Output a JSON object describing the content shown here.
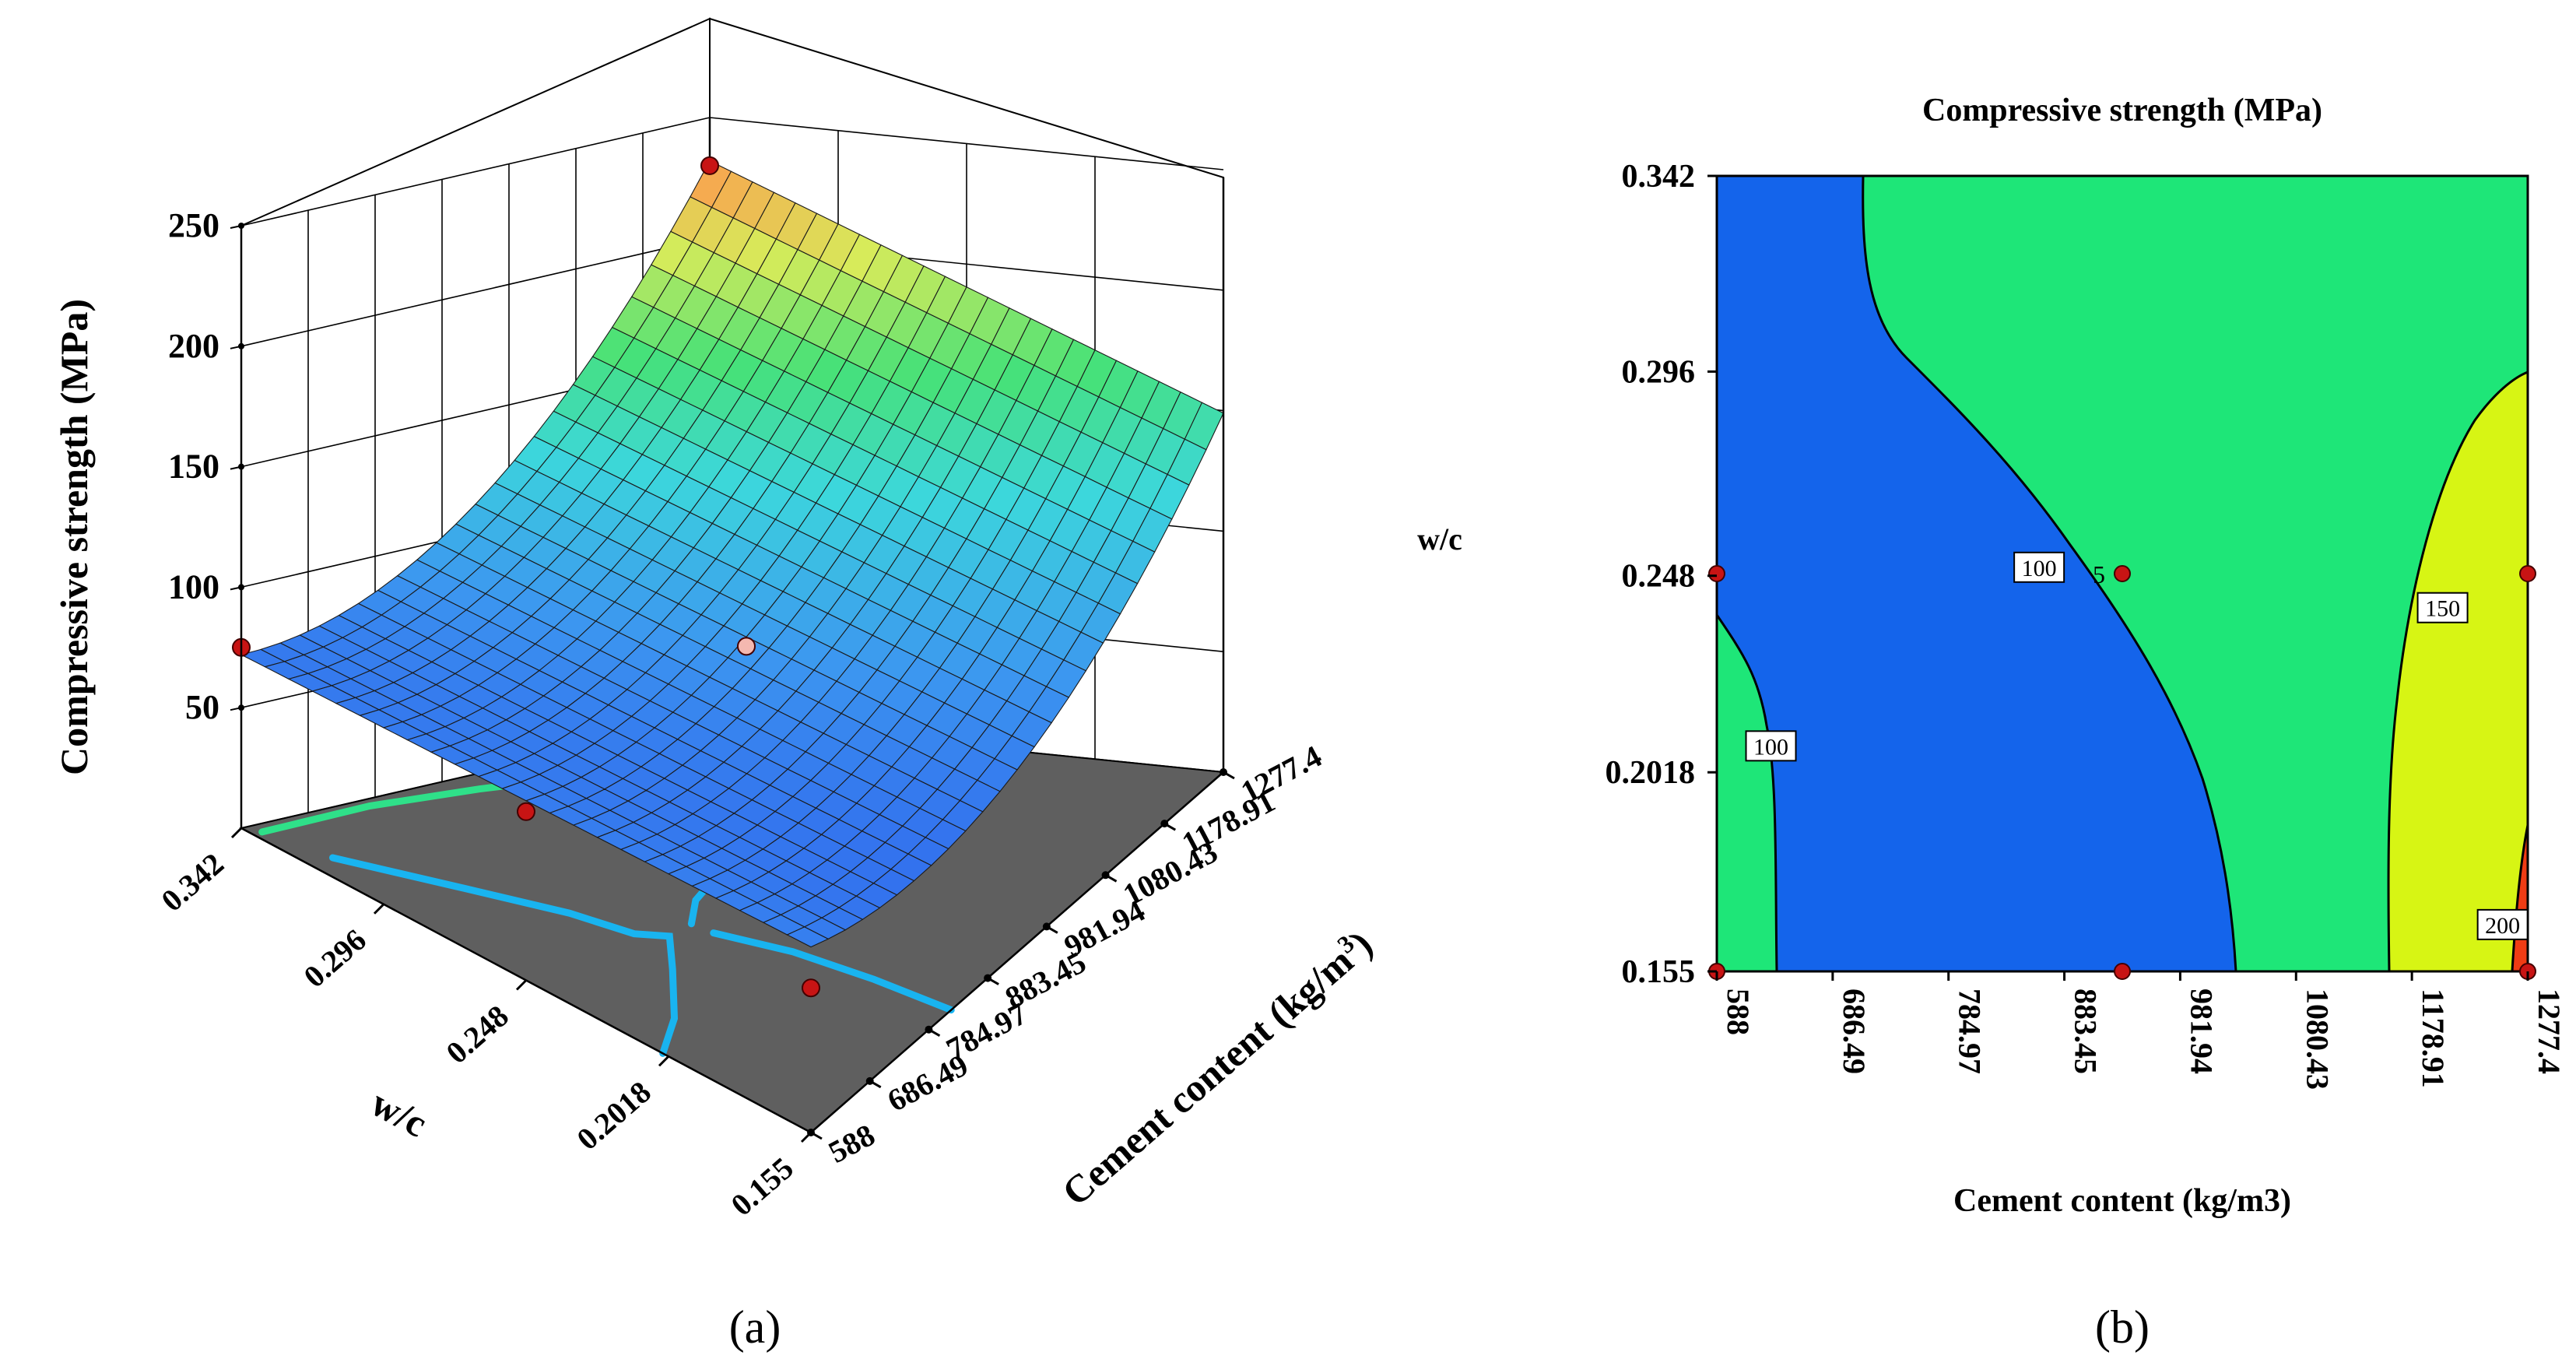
{
  "panel_a": {
    "caption": "(a)",
    "chart_data": {
      "type": "surface3d",
      "title": "",
      "zlabel": "Compressive strength (MPa)",
      "xlabel": "Cement content (kg/m3)",
      "xlabel_main": "Cement content (kg/m",
      "xlabel_sup": "3",
      "xlabel_end": ")",
      "ylabel": "w/c",
      "x_ticks": [
        "588",
        "686.49",
        "784.97",
        "883.45",
        "981.94",
        "1080.43",
        "1178.91",
        "1277.4"
      ],
      "y_ticks": [
        "0.342",
        "0.296",
        "0.248",
        "0.2018",
        "0.155"
      ],
      "z_ticks": [
        "50",
        "100",
        "150",
        "200",
        "250"
      ],
      "xlim": [
        588,
        1277.4
      ],
      "ylim": [
        0.155,
        0.342
      ],
      "zlim": [
        0,
        250
      ],
      "design_points": [
        {
          "cement": 588,
          "wc": 0.342,
          "strength": 75
        },
        {
          "cement": 588,
          "wc": 0.155,
          "strength": 60
        },
        {
          "cement": 1277.4,
          "wc": 0.342,
          "strength": 230
        },
        {
          "cement": 932.7,
          "wc": 0.2485,
          "strength": 90
        },
        {
          "cement": 588,
          "wc": 0.2485,
          "strength": 70
        }
      ],
      "floor_contours": [
        {
          "level": 100,
          "color": "#19b4f0"
        },
        {
          "level": 150,
          "color": "#2fe089"
        },
        {
          "level": 200,
          "color": "#c8f03c"
        },
        {
          "level": 250,
          "color": "#f09b1e"
        }
      ]
    }
  },
  "panel_b": {
    "caption": "(b)",
    "chart_data": {
      "type": "contour",
      "title": "Compressive strength (MPa)",
      "xlabel": "Cement content (kg/m3)",
      "ylabel": "w/c",
      "x_ticks": [
        "588",
        "686.49",
        "784.97",
        "883.45",
        "981.94",
        "1080.43",
        "1178.91",
        "1277.4"
      ],
      "y_ticks": [
        "0.342",
        "0.296",
        "0.248",
        "0.2018",
        "0.155"
      ],
      "xlim": [
        588,
        1277.4
      ],
      "ylim": [
        0.155,
        0.342
      ],
      "regions": [
        {
          "range": "< 100",
          "color": "#1464eb"
        },
        {
          "range": "100-150",
          "color": "#1ee678"
        },
        {
          "range": "150-200",
          "color": "#d7f514"
        },
        {
          "range": "> 200",
          "color": "#f03c14"
        }
      ],
      "contour_labels": [
        {
          "text": "100",
          "cement": 634,
          "wc": 0.208
        },
        {
          "text": "100",
          "cement": 862,
          "wc": 0.25
        },
        {
          "text": "150",
          "cement": 1205,
          "wc": 0.2405
        },
        {
          "text": "200",
          "cement": 1256,
          "wc": 0.166
        }
      ],
      "center_label": "5",
      "design_points": [
        {
          "cement": 588,
          "wc": 0.2485
        },
        {
          "cement": 588,
          "wc": 0.155
        },
        {
          "cement": 932.7,
          "wc": 0.2485
        },
        {
          "cement": 932.7,
          "wc": 0.155
        },
        {
          "cement": 1277.4,
          "wc": 0.2485
        },
        {
          "cement": 1277.4,
          "wc": 0.155
        }
      ]
    }
  }
}
